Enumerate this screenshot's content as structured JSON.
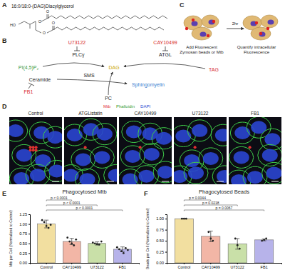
{
  "panel_labels": [
    "A",
    "B",
    "C",
    "D",
    "E",
    "F"
  ],
  "panel_a": {
    "title": "16:0/18:0-(DAG)Diacylglycerol",
    "atoms": [
      "HO",
      "O",
      "O",
      "O",
      "O"
    ]
  },
  "panel_b": {
    "nodes": [
      {
        "label": "U73122",
        "color": "#d62728"
      },
      {
        "label": "CAY10499",
        "color": "#d62728"
      },
      {
        "label": "PLCγ",
        "color": "#222222"
      },
      {
        "label": "ATGL",
        "color": "#222222"
      },
      {
        "label": "PI(4,5)P₂",
        "color": "#3a9a3a"
      },
      {
        "label": "DAG",
        "color": "#c9a400"
      },
      {
        "label": "TAG",
        "color": "#d62728"
      },
      {
        "label": "Ceramide",
        "color": "#222222"
      },
      {
        "label": "SMS",
        "color": "#222222"
      },
      {
        "label": "Sphingomyelin",
        "color": "#3b7fd0"
      },
      {
        "label": "FB1",
        "color": "#d62728"
      },
      {
        "label": "PC",
        "color": "#222222"
      }
    ]
  },
  "panel_c": {
    "time": "2hr",
    "step1": "Add Fluorescent Zymosan beads or Mtb",
    "step2": "Quantify intracellular Fluorescence"
  },
  "panel_d": {
    "stains": [
      {
        "label": "Mtb",
        "color": "#e03030"
      },
      {
        "label": "Phalloidin",
        "color": "#3aa03a"
      },
      {
        "label": "DAPI",
        "color": "#2a45d0"
      }
    ],
    "conditions": [
      "Control",
      "ATGListatin",
      "CAY10499",
      "U73122",
      "FB1"
    ]
  },
  "chart_data": [
    {
      "type": "bar",
      "title": "Phagocytosed Mtb",
      "y_label": "Mtb per Cell (Normalized to Control)",
      "categories": [
        "Control",
        "CAY10499",
        "U73122",
        "FB1"
      ],
      "values": [
        1.0,
        0.55,
        0.5,
        0.35
      ],
      "errors": [
        0.1,
        0.08,
        0.04,
        0.06
      ],
      "points": [
        [
          1.1,
          1.05,
          0.95,
          0.9,
          0.98
        ],
        [
          0.65,
          0.55,
          0.5,
          0.45,
          0.6
        ],
        [
          0.52,
          0.5,
          0.48,
          0.47,
          0.55
        ],
        [
          0.4,
          0.35,
          0.3,
          0.25,
          0.38,
          0.33
        ]
      ],
      "colors": [
        "#f2dfa0",
        "#f2b6a6",
        "#c9e0a8",
        "#b7b3ea"
      ],
      "ylim": [
        0,
        1.25
      ],
      "yticks": [
        {
          "value": 0,
          "label": "0.00"
        },
        {
          "value": 0.25,
          "label": "0.25"
        },
        {
          "value": 0.5,
          "label": "0.50"
        },
        {
          "value": 0.75,
          "label": "0.75"
        },
        {
          "value": 1,
          "label": "1.00"
        },
        {
          "value": 1.25,
          "label": "1.25"
        }
      ],
      "annotations": [
        "p < 0.0001",
        "p < 0.0001",
        "p < 0.0001"
      ]
    },
    {
      "type": "bar",
      "title": "Phagocytosed Beads",
      "y_label": "Beads per Cell (Normalized to Control)",
      "categories": [
        "Control",
        "CAY10499",
        "U73122",
        "FB1"
      ],
      "values": [
        1.0,
        0.6,
        0.43,
        0.52
      ],
      "errors": [
        0.0,
        0.12,
        0.12,
        0.02
      ],
      "points": [
        [
          1.0,
          1.0,
          1.0
        ],
        [
          0.7,
          0.55,
          0.5
        ],
        [
          0.55,
          0.4,
          0.32
        ],
        [
          0.5,
          0.52,
          0.55
        ]
      ],
      "colors": [
        "#f2dfa0",
        "#f2b6a6",
        "#c9e0a8",
        "#b7b3ea"
      ],
      "ylim": [
        0,
        1.1
      ],
      "yticks": [
        {
          "value": 0,
          "label": "0.00"
        },
        {
          "value": 0.25,
          "label": "0.25"
        },
        {
          "value": 0.5,
          "label": "0.50"
        },
        {
          "value": 0.75,
          "label": "0.75"
        },
        {
          "value": 1,
          "label": "1.00"
        }
      ],
      "annotations": [
        "p = 0.0044",
        "p = 0.0218",
        "p = 0.0067"
      ]
    }
  ]
}
